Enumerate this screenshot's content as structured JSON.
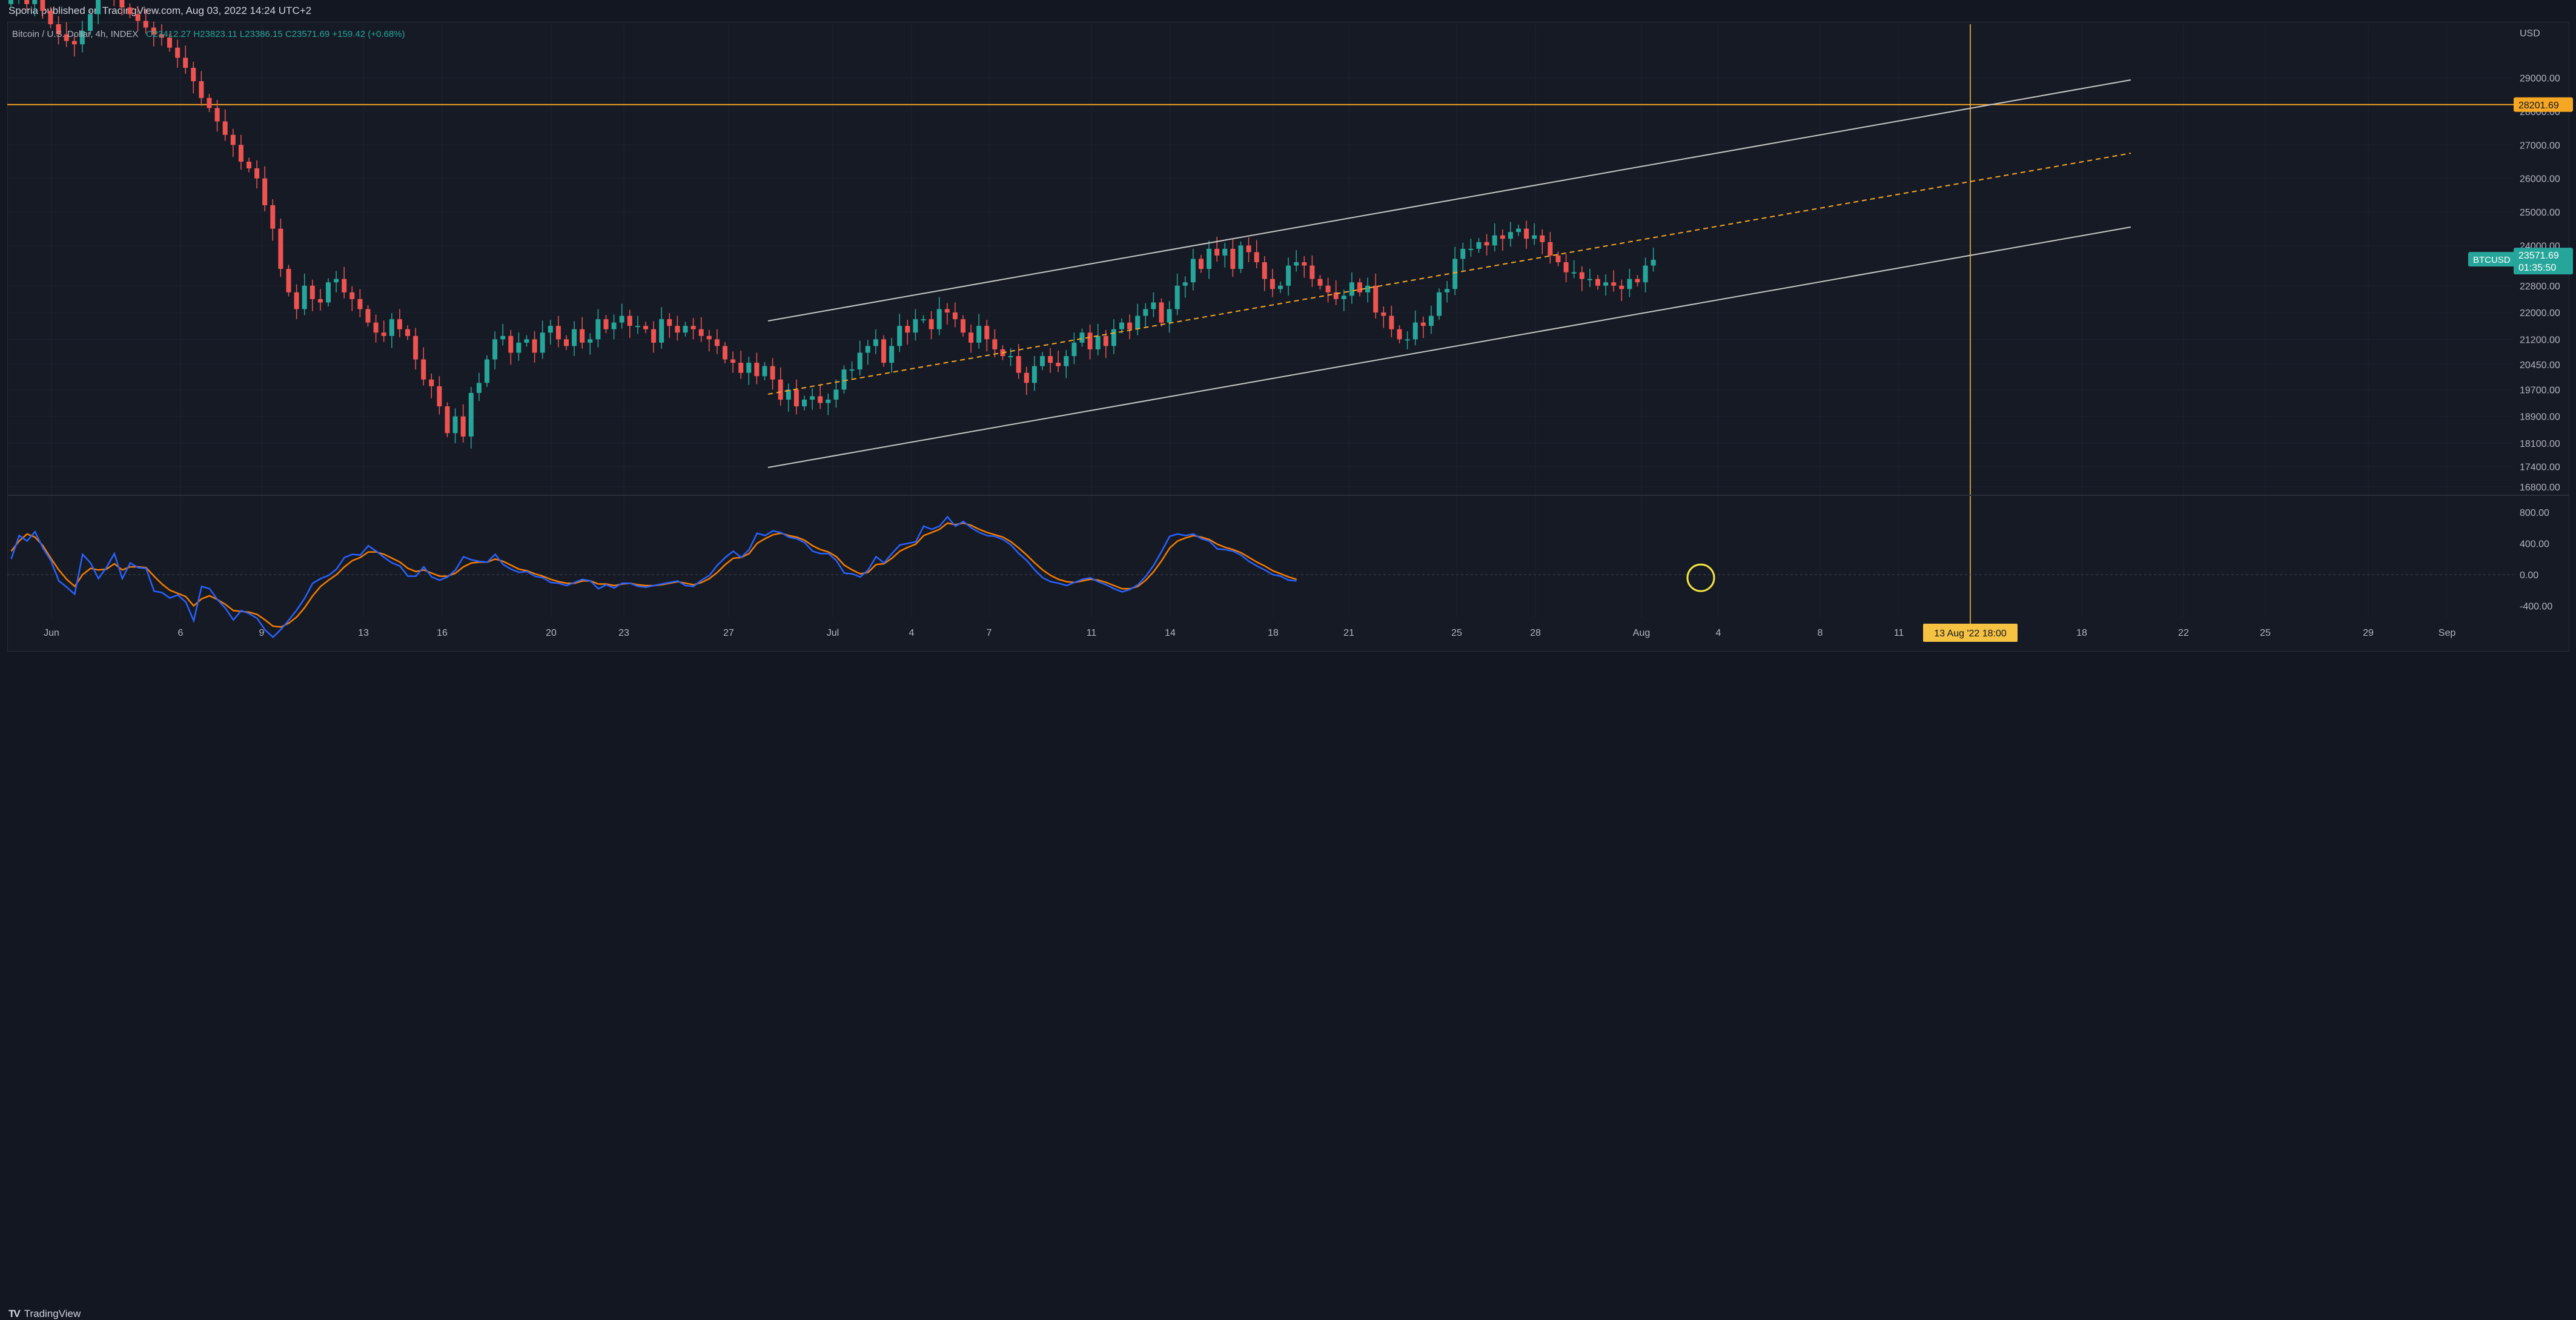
{
  "publish_note": "Sporia published on TradingView.com, Aug 03, 2022 14:24 UTC+2",
  "legend": {
    "symbol": "Bitcoin / U.S. Dollar, 4h, INDEX",
    "ohlc": "O23412.27 H23823.11 L23386.15 C23571.69 +159.42 (+0.68%)"
  },
  "price_axis": {
    "currency": "USD",
    "ticks": [
      "29000.00",
      "28000.00",
      "27000.00",
      "26000.00",
      "25000.00",
      "24000.00",
      "22800.00",
      "22000.00",
      "21200.00",
      "20450.00",
      "19700.00",
      "18900.00",
      "18100.00",
      "17400.00",
      "16800.00"
    ],
    "highlight_label": "28201.69",
    "symbol_tag": "BTCUSD",
    "last_price": "23571.69",
    "countdown": "01:35:50"
  },
  "osc_axis": {
    "ticks": [
      "800.00",
      "400.00",
      "0.00",
      "-400.00"
    ]
  },
  "time_axis": {
    "labels": [
      "Jun",
      "6",
      "9",
      "13",
      "16",
      "20",
      "23",
      "27",
      "Jul",
      "4",
      "7",
      "11",
      "14",
      "18",
      "21",
      "25",
      "28",
      "Aug",
      "4",
      "8",
      "11",
      "18",
      "22",
      "25",
      "29",
      "Sep"
    ],
    "crosshair_label": "13 Aug '22   18:00"
  },
  "footer": {
    "brand": "TradingView"
  },
  "colors": {
    "up": "#26a69a",
    "down": "#ef5350",
    "crosshair": "#f5c242",
    "horizontal_line": "#f5a623",
    "channel": "#c8c8c8",
    "osc_fast": "#2962ff",
    "osc_slow": "#f57c00"
  },
  "chart_data": {
    "type": "candlestick",
    "timeframe": "4h",
    "ylim": [
      16600,
      30600
    ],
    "horizontal_line": 28201.69,
    "last_close": 23571.69,
    "closes": [
      31500,
      31800,
      31200,
      31600,
      31000,
      30600,
      30300,
      30100,
      30000,
      30400,
      30900,
      31700,
      32100,
      31500,
      31100,
      30900,
      30700,
      30500,
      30300,
      30200,
      29900,
      29600,
      29300,
      28900,
      28400,
      28100,
      27700,
      27300,
      27000,
      26500,
      26300,
      26000,
      25200,
      24500,
      23300,
      22600,
      22100,
      22800,
      22400,
      22300,
      22900,
      23000,
      22600,
      22400,
      22100,
      21700,
      21400,
      21300,
      21800,
      21500,
      21300,
      20600,
      20000,
      19800,
      19200,
      18400,
      18900,
      18300,
      19600,
      19900,
      20600,
      21200,
      21300,
      20800,
      21100,
      21200,
      20800,
      21400,
      21600,
      21200,
      21000,
      21500,
      21100,
      21200,
      21800,
      21500,
      21700,
      21900,
      21600,
      21600,
      21500,
      21100,
      21800,
      21600,
      21400,
      21600,
      21500,
      21300,
      21200,
      21000,
      20600,
      20500,
      20200,
      20500,
      20100,
      20400,
      20000,
      19400,
      19700,
      19200,
      19400,
      19500,
      19300,
      19400,
      19700,
      20300,
      20300,
      20800,
      21000,
      21200,
      20500,
      21000,
      21600,
      21400,
      21800,
      21800,
      21500,
      22100,
      22000,
      21800,
      21400,
      21100,
      21600,
      21200,
      20900,
      20700,
      20700,
      20200,
      19900,
      20400,
      20700,
      20500,
      20400,
      20700,
      21100,
      21400,
      20900,
      21300,
      21000,
      21500,
      21700,
      21500,
      21900,
      22100,
      22300,
      21700,
      22100,
      22800,
      22900,
      23600,
      23300,
      23900,
      23700,
      23900,
      23300,
      24000,
      23800,
      23500,
      23000,
      22700,
      22800,
      23400,
      23500,
      23400,
      23000,
      22800,
      22600,
      22400,
      22500,
      22900,
      22600,
      22800,
      22000,
      21900,
      21500,
      21200,
      21200,
      21700,
      21600,
      21900,
      22600,
      22700,
      23600,
      23900,
      23900,
      24100,
      24000,
      24300,
      24200,
      24400,
      24500,
      24200,
      24300,
      24100,
      23700,
      23500,
      23200,
      23200,
      23000,
      23000,
      22800,
      22900,
      22800,
      22700,
      23000,
      22900,
      23400,
      23572
    ],
    "oscillator": {
      "fast": [
        200,
        500,
        430,
        550,
        340,
        180,
        -80,
        -160,
        -250,
        260,
        150,
        -50,
        90,
        270,
        -50,
        150,
        90,
        80,
        -210,
        -230,
        -300,
        -260,
        -350,
        -590,
        -150,
        -180,
        -320,
        -430,
        -580,
        -460,
        -500,
        -560,
        -710,
        -800,
        -700,
        -580,
        -450,
        -300,
        -110,
        -50,
        -10,
        70,
        220,
        260,
        250,
        370,
        300,
        220,
        150,
        110,
        -20,
        -20,
        100,
        -30,
        -70,
        -30,
        60,
        230,
        190,
        170,
        160,
        260,
        130,
        70,
        30,
        40,
        -20,
        -40,
        -100,
        -110,
        -140,
        -100,
        -60,
        -80,
        -180,
        -130,
        -170,
        -110,
        -110,
        -150,
        -160,
        -140,
        -120,
        -100,
        -80,
        -140,
        -150,
        -70,
        -10,
        120,
        220,
        300,
        220,
        320,
        530,
        500,
        560,
        540,
        480,
        460,
        410,
        300,
        270,
        270,
        180,
        20,
        10,
        -30,
        60,
        230,
        150,
        270,
        380,
        400,
        420,
        620,
        580,
        620,
        740,
        620,
        680,
        600,
        540,
        500,
        490,
        450,
        380,
        270,
        180,
        60,
        -40,
        -90,
        -110,
        -140,
        -100,
        -60,
        -40,
        -90,
        -130,
        -180,
        -220,
        -190,
        -130,
        -20,
        120,
        300,
        490,
        520,
        500,
        520,
        460,
        430,
        330,
        320,
        300,
        250,
        170,
        110,
        60,
        0,
        -20,
        -70,
        -80
      ],
      "slow": [
        300,
        430,
        520,
        480,
        370,
        210,
        60,
        -60,
        -150,
        0,
        80,
        60,
        70,
        140,
        60,
        100,
        100,
        90,
        -20,
        -120,
        -200,
        -240,
        -280,
        -400,
        -310,
        -270,
        -320,
        -380,
        -460,
        -470,
        -480,
        -510,
        -580,
        -660,
        -670,
        -620,
        -540,
        -420,
        -270,
        -150,
        -70,
        0,
        100,
        180,
        220,
        290,
        290,
        260,
        210,
        160,
        80,
        40,
        60,
        20,
        -20,
        -20,
        20,
        100,
        150,
        160,
        160,
        200,
        170,
        120,
        70,
        50,
        10,
        -20,
        -60,
        -90,
        -110,
        -110,
        -80,
        -80,
        -120,
        -120,
        -140,
        -120,
        -110,
        -130,
        -140,
        -140,
        -130,
        -110,
        -90,
        -110,
        -130,
        -100,
        -50,
        30,
        130,
        210,
        220,
        270,
        400,
        460,
        510,
        530,
        500,
        480,
        440,
        370,
        320,
        290,
        230,
        120,
        60,
        10,
        30,
        130,
        140,
        210,
        300,
        350,
        390,
        500,
        540,
        580,
        660,
        640,
        660,
        630,
        580,
        540,
        510,
        480,
        420,
        340,
        250,
        150,
        60,
        -10,
        -60,
        -90,
        -100,
        -80,
        -60,
        -70,
        -100,
        -140,
        -180,
        -180,
        -150,
        -70,
        40,
        180,
        340,
        430,
        470,
        500,
        480,
        450,
        390,
        350,
        320,
        280,
        220,
        160,
        110,
        50,
        10,
        -30,
        -60
      ]
    }
  }
}
